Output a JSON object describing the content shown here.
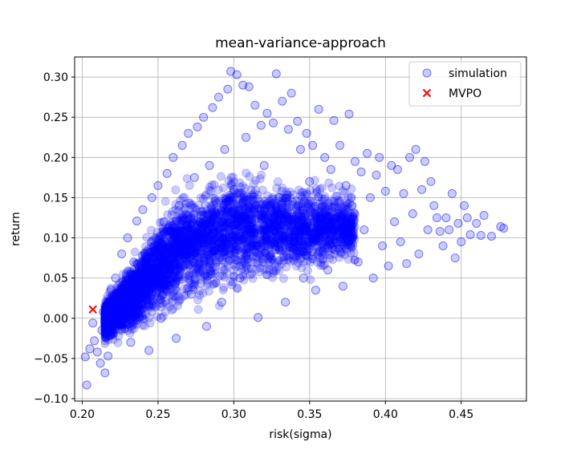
{
  "chart_data": {
    "type": "scatter",
    "title": "mean-variance-approach",
    "xlabel": "risk(sigma)",
    "ylabel": "return",
    "xlim": [
      0.195,
      0.493
    ],
    "ylim": [
      -0.103,
      0.325
    ],
    "xticks": [
      0.2,
      0.25,
      0.3,
      0.35,
      0.4,
      0.45
    ],
    "xtick_labels": [
      "0.20",
      "0.25",
      "0.30",
      "0.35",
      "0.40",
      "0.45"
    ],
    "yticks": [
      -0.1,
      -0.05,
      0.0,
      0.05,
      0.1,
      0.15,
      0.2,
      0.25,
      0.3
    ],
    "ytick_labels": [
      "−0.10",
      "−0.05",
      "0.00",
      "0.05",
      "0.10",
      "0.15",
      "0.20",
      "0.25",
      "0.30"
    ],
    "grid": true,
    "legend_position": "top-right",
    "series": [
      {
        "name": "simulation",
        "color": "#0000ff",
        "marker": "circle",
        "alpha": 0.2,
        "points": [
          [
            0.202,
            -0.048
          ],
          [
            0.203,
            -0.083
          ],
          [
            0.205,
            -0.038
          ],
          [
            0.207,
            -0.006
          ],
          [
            0.208,
            -0.028
          ],
          [
            0.21,
            -0.042
          ],
          [
            0.212,
            -0.056
          ],
          [
            0.213,
            -0.015
          ],
          [
            0.214,
            0.008
          ],
          [
            0.215,
            -0.068
          ],
          [
            0.216,
            0.012
          ],
          [
            0.217,
            -0.047
          ],
          [
            0.219,
            0.035
          ],
          [
            0.22,
            0.005
          ],
          [
            0.222,
            0.05
          ],
          [
            0.224,
            -0.005
          ],
          [
            0.226,
            0.08
          ],
          [
            0.228,
            0.02
          ],
          [
            0.23,
            0.1
          ],
          [
            0.232,
            -0.03
          ],
          [
            0.234,
            0.07
          ],
          [
            0.236,
            0.121
          ],
          [
            0.238,
            0.01
          ],
          [
            0.24,
            0.135
          ],
          [
            0.242,
            0.045
          ],
          [
            0.244,
            -0.04
          ],
          [
            0.246,
            0.15
          ],
          [
            0.248,
            0.09
          ],
          [
            0.25,
            0.165
          ],
          [
            0.252,
            0.0
          ],
          [
            0.254,
            0.12
          ],
          [
            0.256,
            0.18
          ],
          [
            0.258,
            0.06
          ],
          [
            0.26,
            0.2
          ],
          [
            0.262,
            -0.025
          ],
          [
            0.264,
            0.14
          ],
          [
            0.266,
            0.215
          ],
          [
            0.268,
            0.1
          ],
          [
            0.27,
            0.23
          ],
          [
            0.272,
            0.03
          ],
          [
            0.274,
            0.175
          ],
          [
            0.276,
            0.238
          ],
          [
            0.278,
            0.08
          ],
          [
            0.28,
            0.25
          ],
          [
            0.282,
            -0.01
          ],
          [
            0.284,
            0.19
          ],
          [
            0.286,
            0.262
          ],
          [
            0.288,
            0.13
          ],
          [
            0.29,
            0.275
          ],
          [
            0.292,
            0.02
          ],
          [
            0.294,
            0.21
          ],
          [
            0.296,
            0.285
          ],
          [
            0.298,
            0.307
          ],
          [
            0.3,
            0.16
          ],
          [
            0.302,
            0.303
          ],
          [
            0.304,
            0.05
          ],
          [
            0.306,
            0.29
          ],
          [
            0.308,
            0.225
          ],
          [
            0.31,
            0.288
          ],
          [
            0.312,
            0.11
          ],
          [
            0.314,
            0.265
          ],
          [
            0.316,
            0.001
          ],
          [
            0.318,
            0.24
          ],
          [
            0.32,
            0.19
          ],
          [
            0.322,
            0.255
          ],
          [
            0.324,
            0.07
          ],
          [
            0.326,
            0.243
          ],
          [
            0.328,
            0.304
          ],
          [
            0.33,
            0.15
          ],
          [
            0.332,
            0.27
          ],
          [
            0.334,
            0.02
          ],
          [
            0.336,
            0.235
          ],
          [
            0.338,
            0.28
          ],
          [
            0.34,
            0.1
          ],
          [
            0.342,
            0.245
          ],
          [
            0.344,
            0.21
          ],
          [
            0.346,
            0.05
          ],
          [
            0.348,
            0.23
          ],
          [
            0.35,
            0.17
          ],
          [
            0.352,
            0.215
          ],
          [
            0.354,
            0.035
          ],
          [
            0.356,
            0.26
          ],
          [
            0.358,
            0.125
          ],
          [
            0.36,
            0.2
          ],
          [
            0.362,
            0.06
          ],
          [
            0.364,
            0.185
          ],
          [
            0.366,
            0.246
          ],
          [
            0.368,
            0.095
          ],
          [
            0.37,
            0.215
          ],
          [
            0.372,
            0.04
          ],
          [
            0.374,
            0.165
          ],
          [
            0.376,
            0.254
          ],
          [
            0.378,
            0.14
          ],
          [
            0.38,
            0.195
          ],
          [
            0.382,
            0.07
          ],
          [
            0.384,
            0.182
          ],
          [
            0.386,
            0.11
          ],
          [
            0.388,
            0.205
          ],
          [
            0.39,
            0.15
          ],
          [
            0.392,
            0.05
          ],
          [
            0.394,
            0.178
          ],
          [
            0.396,
            0.2
          ],
          [
            0.398,
            0.09
          ],
          [
            0.4,
            0.158
          ],
          [
            0.402,
            0.065
          ],
          [
            0.404,
            0.19
          ],
          [
            0.406,
            0.12
          ],
          [
            0.408,
            0.185
          ],
          [
            0.41,
            0.095
          ],
          [
            0.412,
            0.155
          ],
          [
            0.414,
            0.068
          ],
          [
            0.416,
            0.2
          ],
          [
            0.418,
            0.13
          ],
          [
            0.42,
            0.21
          ],
          [
            0.422,
            0.08
          ],
          [
            0.424,
            0.16
          ],
          [
            0.426,
            0.195
          ],
          [
            0.428,
            0.11
          ],
          [
            0.43,
            0.17
          ],
          [
            0.432,
            0.14
          ],
          [
            0.434,
            0.125
          ],
          [
            0.436,
            0.108
          ],
          [
            0.438,
            0.09
          ],
          [
            0.44,
            0.125
          ],
          [
            0.442,
            0.11
          ],
          [
            0.444,
            0.155
          ],
          [
            0.446,
            0.075
          ],
          [
            0.448,
            0.118
          ],
          [
            0.45,
            0.095
          ],
          [
            0.452,
            0.14
          ],
          [
            0.454,
            0.125
          ],
          [
            0.456,
            0.104
          ],
          [
            0.46,
            0.118
          ],
          [
            0.463,
            0.103
          ],
          [
            0.465,
            0.128
          ],
          [
            0.47,
            0.102
          ],
          [
            0.476,
            0.114
          ],
          [
            0.478,
            0.112
          ]
        ]
      },
      {
        "name": "MVPO",
        "color": "#ff0000",
        "marker": "x",
        "points": [
          [
            0.207,
            0.011
          ]
        ]
      }
    ],
    "legend": [
      {
        "label": "simulation",
        "marker": "circle",
        "color": "#0000ff"
      },
      {
        "label": "MVPO",
        "marker": "x",
        "color": "#ff0000"
      }
    ]
  }
}
